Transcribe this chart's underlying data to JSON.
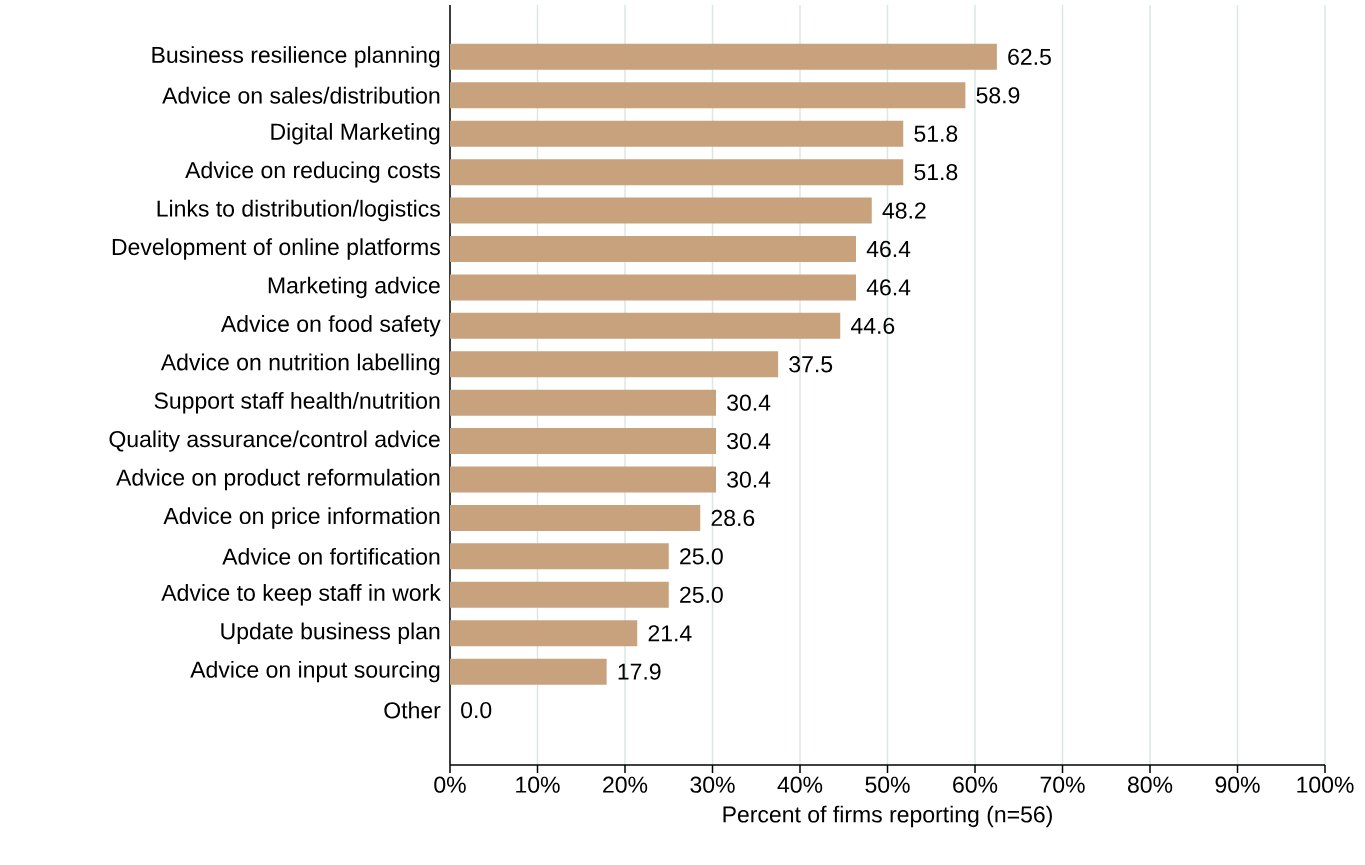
{
  "chart_data": {
    "type": "bar",
    "orientation": "horizontal",
    "xlabel": "Percent of firms reporting (n=56)",
    "categories": [
      "Business resilience planning",
      "Advice on sales/distribution",
      "Digital Marketing",
      "Advice on reducing costs",
      "Links to distribution/logistics",
      "Development of online platforms",
      "Marketing advice",
      "Advice on food safety",
      "Advice on nutrition labelling",
      "Support staff health/nutrition",
      "Quality assurance/control advice",
      "Advice on product reformulation",
      "Advice on price information",
      "Advice on fortification",
      "Advice to keep staff in work",
      "Update business plan",
      "Advice on input sourcing",
      "Other"
    ],
    "values": [
      62.5,
      58.9,
      51.8,
      51.8,
      48.2,
      46.4,
      46.4,
      44.6,
      37.5,
      30.4,
      30.4,
      30.4,
      28.6,
      25.0,
      25.0,
      21.4,
      17.9,
      0.0
    ],
    "value_labels": [
      "62.5",
      "58.9",
      "51.8",
      "51.8",
      "48.2",
      "46.4",
      "46.4",
      "44.6",
      "37.5",
      "30.4",
      "30.4",
      "30.4",
      "28.6",
      "25.0",
      "25.0",
      "21.4",
      "17.9",
      "0.0"
    ],
    "color": "#c8a27c",
    "xlim": [
      0,
      100
    ],
    "xticks": [
      {
        "value": 0,
        "label": "0%"
      },
      {
        "value": 10,
        "label": "10%"
      },
      {
        "value": 20,
        "label": "20%"
      },
      {
        "value": 30,
        "label": "30%"
      },
      {
        "value": 40,
        "label": "40%"
      },
      {
        "value": 50,
        "label": "50%"
      },
      {
        "value": 60,
        "label": "60%"
      },
      {
        "value": 70,
        "label": "70%"
      },
      {
        "value": 80,
        "label": "80%"
      },
      {
        "value": 90,
        "label": "90%"
      },
      {
        "value": 100,
        "label": "100%"
      }
    ],
    "grid": "x"
  }
}
